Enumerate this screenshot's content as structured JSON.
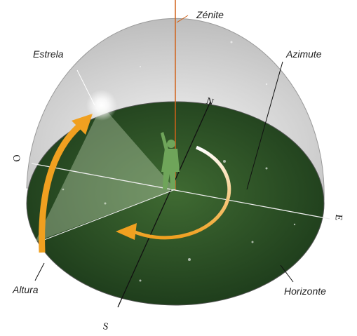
{
  "labels": {
    "zenith": "Zénite",
    "star": "Estrela",
    "azimuth": "Azimute",
    "west": "O",
    "north": "N",
    "east": "E",
    "south": "S",
    "altitude": "Altura",
    "horizon": "Horizonte"
  }
}
